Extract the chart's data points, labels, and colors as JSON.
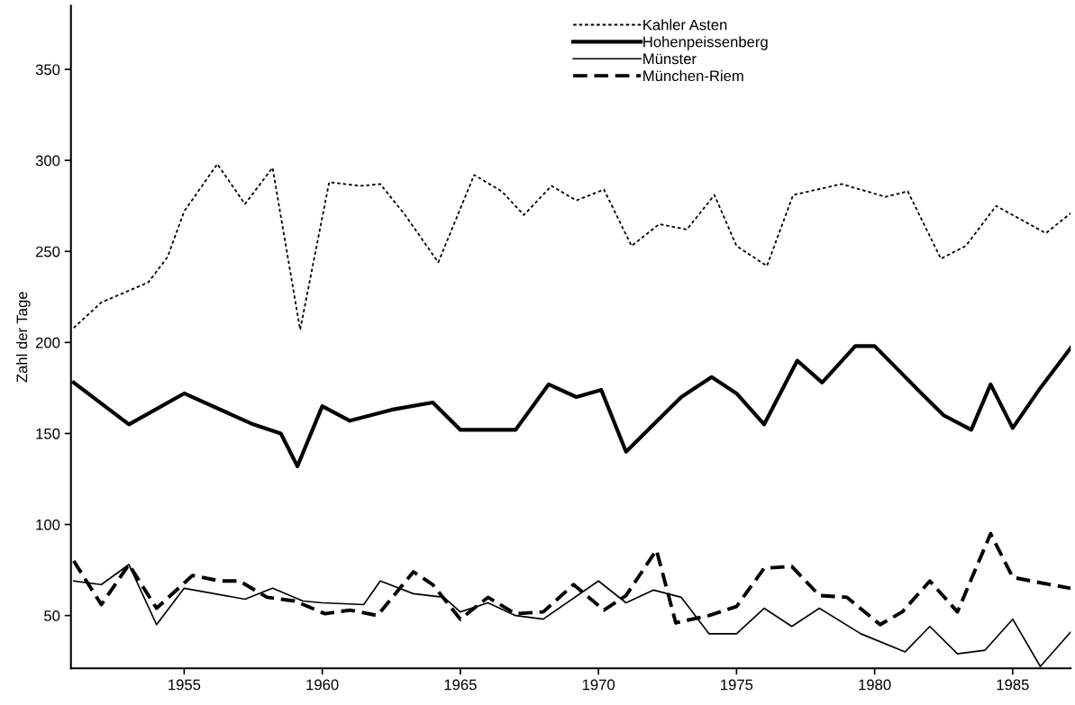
{
  "chart_data": {
    "type": "line",
    "ylabel": "Zahl der Tage",
    "xlim": [
      1950.9,
      1987.1
    ],
    "xticks": [
      1955,
      1960,
      1965,
      1970,
      1975,
      1980,
      1985
    ],
    "ylim": [
      21,
      385
    ],
    "yticks": [
      50,
      100,
      150,
      200,
      250,
      300,
      350
    ],
    "grid": false,
    "legend": "top",
    "marker": "none",
    "series": [
      {
        "name": "Kahler Asten",
        "color": "#000000",
        "line_style": "dotted",
        "x": [
          1951,
          1952,
          1953.7,
          1954.4,
          1955,
          1956.2,
          1957.2,
          1958.2,
          1959.2,
          1960.25,
          1961.4,
          1962.1,
          1963,
          1964.2,
          1965.5,
          1966.5,
          1967.3,
          1968.3,
          1969.2,
          1970.2,
          1971.2,
          1972.2,
          1973.2,
          1974.2,
          1975,
          1976.1,
          1977.05,
          1978.8,
          1980.4,
          1981.2,
          1982.4,
          1983.3,
          1984.4,
          1986.2,
          1987.1
        ],
        "values": [
          208,
          222,
          233,
          247,
          272,
          298,
          276,
          296,
          207,
          288,
          286,
          287,
          270,
          244,
          292,
          283,
          270,
          286,
          278,
          284,
          253,
          265,
          262,
          281,
          253,
          242,
          281,
          287,
          280,
          283,
          246,
          253,
          275,
          260,
          271
        ]
      },
      {
        "name": "Hohenpeissenberg",
        "color": "#000000",
        "line_style": "solid",
        "x": [
          1951,
          1953,
          1955,
          1957.5,
          1958.5,
          1959.1,
          1960,
          1961,
          1962.5,
          1964,
          1965,
          1967,
          1968.2,
          1969.2,
          1970.1,
          1971,
          1972,
          1973,
          1974.1,
          1975,
          1976,
          1977.2,
          1978.1,
          1979.3,
          1980,
          1981.5,
          1982.5,
          1983.5,
          1984.2,
          1985,
          1986,
          1987.1
        ],
        "values": [
          178,
          155,
          172,
          155,
          150,
          132,
          165,
          157,
          163,
          167,
          152,
          152,
          177,
          170,
          174,
          140,
          155,
          170,
          181,
          172,
          155,
          190,
          178,
          198,
          198,
          175,
          160,
          152,
          177,
          153,
          175,
          197
        ]
      },
      {
        "name": "Münster",
        "color": "#000000",
        "line_style": "solid",
        "x": [
          1951,
          1952,
          1953,
          1954,
          1955,
          1957.2,
          1958.2,
          1959.3,
          1960,
          1961.5,
          1962.1,
          1963.3,
          1964.4,
          1965,
          1966,
          1967,
          1968,
          1970,
          1971,
          1972,
          1973,
          1974,
          1975,
          1976,
          1977,
          1978,
          1979.5,
          1981.1,
          1982,
          1983,
          1984,
          1985,
          1986,
          1987.1
        ],
        "values": [
          69,
          67,
          78,
          45,
          65,
          59,
          65,
          58,
          57,
          56,
          69,
          62,
          60,
          52,
          57,
          50,
          48,
          69,
          57,
          64,
          60,
          40,
          40,
          54,
          44,
          54,
          40,
          30,
          44,
          29,
          31,
          48,
          22,
          41
        ]
      },
      {
        "name": "München-Riem",
        "color": "#000000",
        "line_style": "dashed",
        "x": [
          1951,
          1952,
          1953,
          1954,
          1955.3,
          1956.3,
          1957,
          1958,
          1959,
          1960.1,
          1961,
          1962,
          1963.3,
          1964,
          1965,
          1966,
          1967,
          1968,
          1969.1,
          1970.2,
          1971,
          1972.1,
          1972.8,
          1974,
          1975,
          1976,
          1977,
          1978,
          1979,
          1980.2,
          1981,
          1982,
          1983,
          1984.2,
          1985,
          1986,
          1987.1
        ],
        "values": [
          80,
          56,
          78,
          54,
          72,
          69,
          69,
          60,
          58,
          51,
          53,
          50,
          74,
          67,
          48,
          60,
          51,
          52,
          67,
          53,
          61,
          86,
          46,
          50,
          55,
          76,
          77,
          61,
          60,
          45,
          52,
          69,
          52,
          95,
          71,
          68,
          65
        ]
      }
    ]
  }
}
